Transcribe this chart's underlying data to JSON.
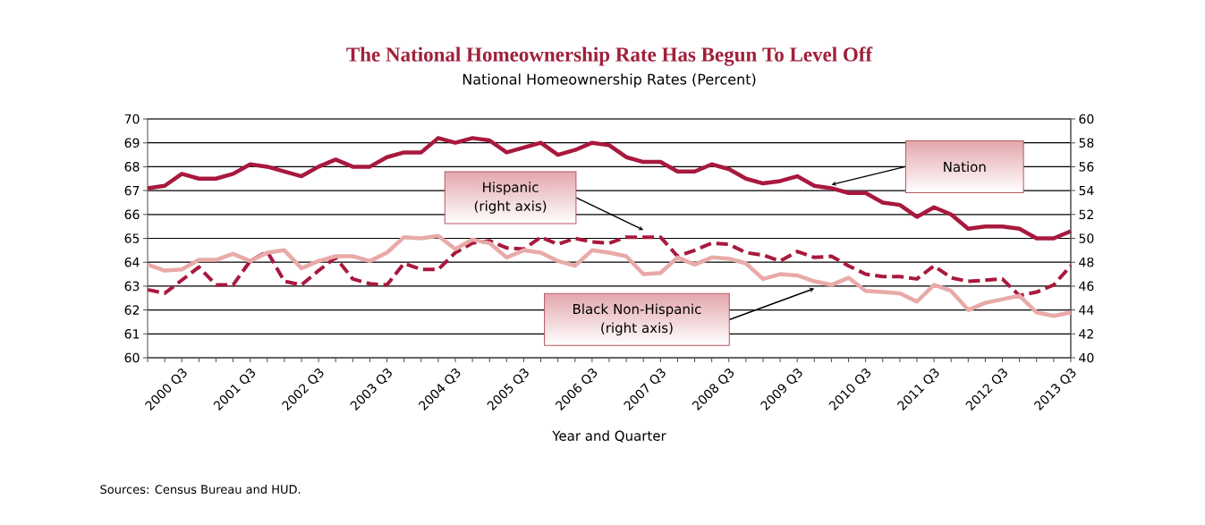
{
  "chart_data": {
    "type": "line",
    "title": "The National Homeownership Rate Has Begun To Level Off",
    "subtitle": "National Homeownership Rates (Percent)",
    "xlabel": "Year and Quarter",
    "annotations": [
      "Sources: Census Bureau and HUD."
    ],
    "categories": [
      null,
      null,
      "2000 Q3",
      null,
      null,
      null,
      "2001 Q3",
      null,
      null,
      null,
      "2002 Q3",
      null,
      null,
      null,
      "2003 Q3",
      null,
      null,
      null,
      "2004 Q3",
      null,
      null,
      null,
      "2005 Q3",
      null,
      null,
      null,
      "2006 Q3",
      null,
      null,
      null,
      "2007 Q3",
      null,
      null,
      null,
      "2008 Q3",
      null,
      null,
      null,
      "2009 Q3",
      null,
      null,
      null,
      "2010 Q3",
      null,
      null,
      null,
      "2011 Q3",
      null,
      null,
      null,
      "2012 Q3",
      null,
      null,
      null,
      "2013 Q3"
    ],
    "series": [
      {
        "name": "Nation",
        "color": "#a8193d",
        "line_style": "solid",
        "values": [
          67.1,
          67.2,
          67.7,
          67.5,
          67.5,
          67.7,
          68.1,
          68.0,
          67.8,
          67.6,
          68.0,
          68.3,
          68.0,
          68.0,
          68.4,
          68.6,
          68.6,
          69.2,
          69.0,
          69.2,
          69.1,
          68.6,
          68.8,
          69.0,
          68.5,
          68.7,
          69.0,
          68.9,
          68.4,
          68.2,
          68.2,
          67.8,
          67.8,
          68.1,
          67.9,
          67.5,
          67.3,
          67.4,
          67.6,
          67.2,
          67.1,
          66.9,
          66.9,
          66.5,
          66.4,
          65.9,
          66.3,
          66.0,
          65.4,
          65.5,
          65.5,
          65.4,
          65.0,
          65.0,
          65.3
        ]
      },
      {
        "name": "Hispanic (right axis)",
        "color": "#a8193d",
        "line_style": "dashed",
        "axis": "y2",
        "values": [
          45.7,
          45.4,
          46.5,
          47.6,
          46.1,
          46.1,
          48.1,
          48.9,
          46.4,
          46.1,
          47.3,
          48.4,
          46.6,
          46.2,
          46.1,
          47.9,
          47.4,
          47.4,
          48.8,
          49.6,
          49.8,
          49.2,
          49.1,
          50.1,
          49.5,
          50.0,
          49.7,
          49.6,
          50.1,
          50.1,
          50.1,
          48.5,
          49.0,
          49.6,
          49.5,
          48.8,
          48.6,
          48.1,
          48.9,
          48.4,
          48.5,
          47.7,
          47.0,
          46.8,
          46.8,
          46.6,
          47.7,
          46.7,
          46.4,
          46.5,
          46.6,
          45.2,
          45.5,
          46.1,
          47.7
        ]
      },
      {
        "name": "Black Non-Hispanic (right axis)",
        "color": "#e8aaa8",
        "line_style": "solid",
        "axis": "y2",
        "values": [
          47.8,
          47.3,
          47.4,
          48.2,
          48.2,
          48.7,
          48.1,
          48.8,
          49.0,
          47.5,
          48.1,
          48.5,
          48.5,
          48.1,
          48.8,
          50.1,
          50.0,
          50.2,
          49.1,
          49.9,
          49.6,
          48.4,
          49.0,
          48.8,
          48.1,
          47.7,
          49.0,
          48.8,
          48.5,
          47.0,
          47.1,
          48.4,
          47.8,
          48.4,
          48.3,
          47.9,
          46.6,
          47.0,
          46.9,
          46.4,
          46.1,
          46.7,
          45.6,
          45.5,
          45.4,
          44.7,
          46.1,
          45.6,
          44.0,
          44.6,
          44.9,
          45.2,
          43.8,
          43.5,
          43.8
        ]
      }
    ],
    "ylim": [
      60,
      70
    ],
    "yticks": [
      60,
      61,
      62,
      63,
      64,
      65,
      66,
      67,
      68,
      69,
      70
    ],
    "y2lim": [
      40,
      60
    ],
    "y2ticks": [
      40,
      42,
      44,
      46,
      48,
      50,
      52,
      54,
      56,
      58,
      60
    ],
    "grid": "y",
    "marker": "none"
  }
}
